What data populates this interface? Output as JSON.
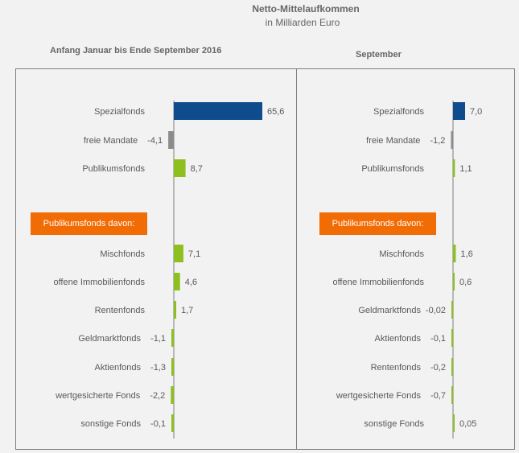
{
  "header": {
    "title": "Netto-Mittelaufkommen",
    "subtitle": "in Milliarden  Euro"
  },
  "panels": {
    "left_period": "Anfang  Januar bis Ende  September 2016",
    "right_period": "September",
    "subgroup_label": "Publikumsfonds davon:"
  },
  "colors": {
    "navy": "#0e4c8e",
    "grey": "#8c8c8c",
    "green": "#8dbf1f"
  },
  "chart_data": [
    {
      "type": "bar",
      "title": "Anfang  Januar bis Ende  September 2016",
      "unit": "Milliarden Euro",
      "categories": [
        "Spezialfonds",
        "freie Mandate",
        "Publikumsfonds",
        "Mischfonds",
        "offene Immobilienfonds",
        "Rentenfonds",
        "Geldmarktfonds",
        "Aktienfonds",
        "wertgesicherte Fonds",
        "sonstige Fonds"
      ],
      "values": [
        65.6,
        -4.1,
        8.7,
        7.1,
        4.6,
        1.7,
        -1.1,
        -1.3,
        -2.2,
        -0.1
      ],
      "value_labels": [
        "65,6",
        "-4,1",
        "8,7",
        "7,1",
        "4,6",
        "1,7",
        "-1,1",
        "-1,3",
        "-2,2",
        "-0,1"
      ],
      "colors": [
        "navy",
        "grey",
        "green",
        "green",
        "green",
        "green",
        "green",
        "green",
        "green",
        "green"
      ]
    },
    {
      "type": "bar",
      "title": "September",
      "unit": "Milliarden Euro",
      "categories": [
        "Spezialfonds",
        "freie Mandate",
        "Publikumsfonds",
        "Mischfonds",
        "offene Immobilienfonds",
        "Geldmarktfonds",
        "Aktienfonds",
        "Rentenfonds",
        "wertgesicherte Fonds",
        "sonstige Fonds"
      ],
      "values": [
        7.0,
        -1.2,
        1.1,
        1.6,
        0.6,
        -0.02,
        -0.1,
        -0.2,
        -0.7,
        0.05
      ],
      "value_labels": [
        "7,0",
        "-1,2",
        "1,1",
        "1,6",
        "0,6",
        "-0,02",
        "-0,1",
        "-0,2",
        "-0,7",
        "0,05"
      ],
      "colors": [
        "navy",
        "grey",
        "green",
        "green",
        "green",
        "green",
        "green",
        "green",
        "green",
        "green"
      ]
    }
  ]
}
